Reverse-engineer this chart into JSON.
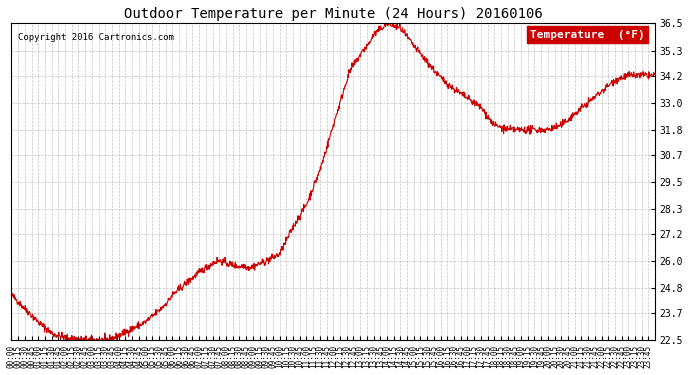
{
  "title": "Outdoor Temperature per Minute (24 Hours) 20160106",
  "copyright_text": "Copyright 2016 Cartronics.com",
  "legend_label": "Temperature  (°F)",
  "line_color": "#cc0000",
  "background_color": "#ffffff",
  "grid_color": "#aaaaaa",
  "ylim": [
    22.5,
    36.5
  ],
  "yticks": [
    22.5,
    23.7,
    24.8,
    26.0,
    27.2,
    28.3,
    29.5,
    30.7,
    31.8,
    33.0,
    34.2,
    35.3,
    36.5
  ],
  "keypoints_t": [
    0,
    30,
    60,
    90,
    120,
    150,
    160,
    170,
    180,
    190,
    200,
    210,
    220,
    230,
    240,
    270,
    300,
    330,
    340,
    350,
    360,
    390,
    420,
    450,
    460,
    470,
    480,
    510,
    520,
    530,
    540,
    570,
    600,
    630,
    660,
    690,
    720,
    750,
    760,
    770,
    780,
    790,
    800,
    810,
    840,
    870,
    900,
    930,
    960,
    990,
    1020,
    1050,
    1080,
    1110,
    1140,
    1170,
    1200,
    1230,
    1260,
    1290,
    1320,
    1350,
    1380,
    1410,
    1439
  ],
  "keypoints_v": [
    24.5,
    23.9,
    23.3,
    22.8,
    22.6,
    22.55,
    22.5,
    22.55,
    22.5,
    22.5,
    22.5,
    22.5,
    22.55,
    22.6,
    22.7,
    23.0,
    23.3,
    23.8,
    24.0,
    24.2,
    24.5,
    25.0,
    25.5,
    25.9,
    26.0,
    26.0,
    25.9,
    25.75,
    25.8,
    25.7,
    25.75,
    26.0,
    26.3,
    27.5,
    28.5,
    30.0,
    32.0,
    34.0,
    34.5,
    34.8,
    35.1,
    35.4,
    35.6,
    36.0,
    36.5,
    36.3,
    35.5,
    34.8,
    34.1,
    33.6,
    33.2,
    32.8,
    32.0,
    31.8,
    31.8,
    31.8,
    31.8,
    32.0,
    32.5,
    33.0,
    33.5,
    34.0,
    34.2,
    34.2,
    34.2
  ]
}
